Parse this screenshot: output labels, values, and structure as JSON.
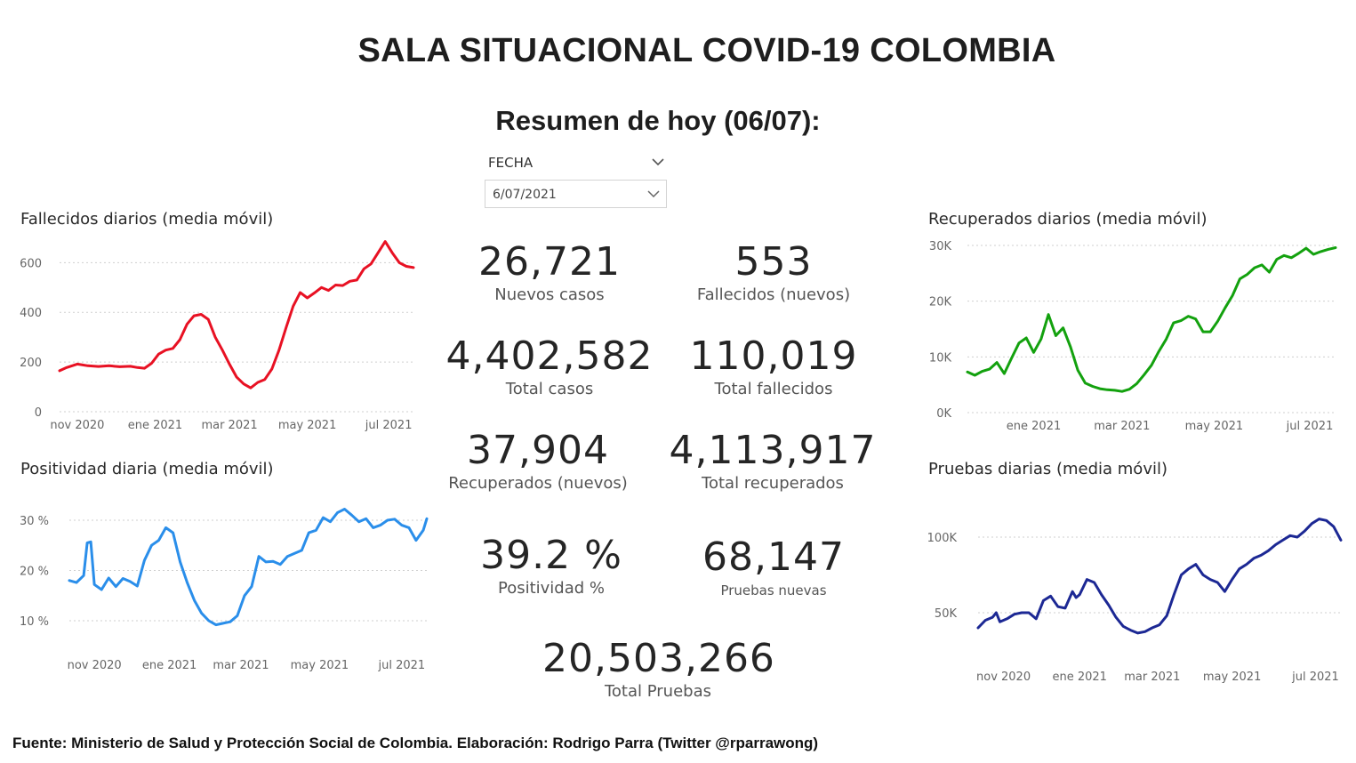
{
  "title": "SALA SITUACIONAL COVID-19 COLOMBIA",
  "subtitle": "Resumen de hoy (06/07):",
  "slicer": {
    "label": "FECHA",
    "value": "6/07/2021"
  },
  "kpis": {
    "nuevos_casos": {
      "value": "26,721",
      "label": "Nuevos casos"
    },
    "fallecidos_nuevos": {
      "value": "553",
      "label": "Fallecidos (nuevos)"
    },
    "total_casos": {
      "value": "4,402,582",
      "label": "Total casos"
    },
    "total_fallecidos": {
      "value": "110,019",
      "label": "Total fallecidos"
    },
    "recuperados_nuevos": {
      "value": "37,904",
      "label": "Recuperados (nuevos)"
    },
    "total_recuperados": {
      "value": "4,113,917",
      "label": "Total recuperados"
    },
    "positividad": {
      "value": "39.2 %",
      "label": "Positividad %"
    },
    "pruebas_nuevas": {
      "value": "68,147",
      "label": "Pruebas nuevas"
    },
    "total_pruebas": {
      "value": "20,503,266",
      "label": "Total Pruebas"
    }
  },
  "footer": "Fuente: Ministerio de Salud y Protección Social de Colombia. Elaboración: Rodrigo Parra (Twitter @rparrawong)",
  "chart_data": [
    {
      "id": "fallecidos",
      "type": "line",
      "title": "Fallecidos diarios (media móvil)",
      "color": "#e81123",
      "x_labels": [
        "nov 2020",
        "ene 2021",
        "mar 2021",
        "may 2021",
        "jul 2021"
      ],
      "x_label_pos": [
        0.05,
        0.27,
        0.48,
        0.7,
        0.93
      ],
      "y_ticks": [
        0,
        200,
        400,
        600
      ],
      "y_tick_labels": [
        "0",
        "200",
        "400",
        "600"
      ],
      "ylim": [
        0,
        680
      ],
      "grid": true,
      "x": [
        0,
        0.02,
        0.05,
        0.08,
        0.11,
        0.14,
        0.17,
        0.2,
        0.22,
        0.24,
        0.26,
        0.28,
        0.3,
        0.32,
        0.34,
        0.36,
        0.38,
        0.4,
        0.42,
        0.44,
        0.46,
        0.48,
        0.5,
        0.52,
        0.54,
        0.56,
        0.58,
        0.6,
        0.62,
        0.64,
        0.66,
        0.68,
        0.7,
        0.72,
        0.74,
        0.76,
        0.78,
        0.8,
        0.82,
        0.84,
        0.86,
        0.88,
        0.9,
        0.92,
        0.94,
        0.96,
        0.98,
        1.0
      ],
      "values": [
        165,
        178,
        192,
        185,
        182,
        185,
        181,
        183,
        178,
        175,
        195,
        232,
        248,
        255,
        290,
        352,
        386,
        392,
        372,
        300,
        248,
        192,
        140,
        112,
        96,
        118,
        130,
        172,
        248,
        338,
        425,
        480,
        458,
        478,
        500,
        488,
        510,
        508,
        525,
        530,
        575,
        595,
        640,
        685,
        640,
        600,
        585,
        580
      ]
    },
    {
      "id": "recuperados",
      "type": "line",
      "title": "Recuperados diarios (media móvil)",
      "color": "#13a10e",
      "x_labels": [
        "ene 2021",
        "mar 2021",
        "may 2021",
        "jul 2021"
      ],
      "x_label_pos": [
        0.18,
        0.42,
        0.67,
        0.93
      ],
      "y_ticks": [
        0,
        10000,
        20000,
        30000
      ],
      "y_tick_labels": [
        "0K",
        "10K",
        "20K",
        "30K"
      ],
      "ylim": [
        0,
        30000
      ],
      "grid": true,
      "x": [
        0,
        0.02,
        0.04,
        0.06,
        0.08,
        0.1,
        0.12,
        0.14,
        0.16,
        0.18,
        0.2,
        0.22,
        0.24,
        0.26,
        0.28,
        0.3,
        0.32,
        0.34,
        0.36,
        0.38,
        0.4,
        0.42,
        0.44,
        0.46,
        0.48,
        0.5,
        0.52,
        0.54,
        0.56,
        0.58,
        0.6,
        0.62,
        0.64,
        0.66,
        0.68,
        0.7,
        0.72,
        0.74,
        0.76,
        0.78,
        0.8,
        0.82,
        0.84,
        0.86,
        0.88,
        0.9,
        0.92,
        0.94,
        0.96,
        0.98,
        1.0
      ],
      "values": [
        7300,
        6700,
        7400,
        7800,
        9000,
        7000,
        9800,
        12500,
        13400,
        10800,
        13200,
        17600,
        13800,
        15200,
        11800,
        7600,
        5300,
        4700,
        4300,
        4100,
        4000,
        3800,
        4200,
        5200,
        6800,
        8500,
        11000,
        13200,
        16100,
        16500,
        17300,
        16800,
        14500,
        14500,
        16400,
        18800,
        21000,
        24000,
        24800,
        26000,
        26500,
        25200,
        27500,
        28200,
        27800,
        28600,
        29500,
        28400,
        28900,
        29300,
        29600
      ]
    },
    {
      "id": "positividad",
      "type": "line",
      "title": "Positividad diaria (media móvil)",
      "color": "#2a8eea",
      "x_labels": [
        "nov 2020",
        "ene 2021",
        "mar 2021",
        "may 2021",
        "jul 2021"
      ],
      "x_label_pos": [
        0.07,
        0.28,
        0.48,
        0.7,
        0.93
      ],
      "y_ticks": [
        10,
        20,
        30
      ],
      "y_tick_labels": [
        "10 %",
        "20 %",
        "30 %"
      ],
      "ylim": [
        7,
        33
      ],
      "grid": true,
      "x": [
        0,
        0.02,
        0.04,
        0.05,
        0.06,
        0.07,
        0.09,
        0.11,
        0.13,
        0.15,
        0.17,
        0.19,
        0.21,
        0.23,
        0.25,
        0.27,
        0.29,
        0.31,
        0.33,
        0.35,
        0.37,
        0.39,
        0.41,
        0.43,
        0.45,
        0.47,
        0.49,
        0.51,
        0.53,
        0.55,
        0.57,
        0.59,
        0.61,
        0.63,
        0.65,
        0.67,
        0.69,
        0.71,
        0.73,
        0.75,
        0.77,
        0.79,
        0.81,
        0.83,
        0.85,
        0.87,
        0.89,
        0.91,
        0.93,
        0.95,
        0.97,
        0.99,
        1.0
      ],
      "values": [
        18,
        17.6,
        19,
        25.5,
        25.7,
        17.2,
        16.2,
        18.5,
        16.8,
        18.4,
        17.8,
        16.9,
        22,
        25,
        26,
        28.5,
        27.5,
        21.7,
        17.5,
        14,
        11.5,
        10,
        9.2,
        9.5,
        9.8,
        11,
        15,
        16.8,
        22.8,
        21.7,
        21.8,
        21.2,
        22.8,
        23.4,
        24,
        27.5,
        28,
        30.5,
        29.7,
        31.5,
        32.2,
        31,
        29.7,
        30.3,
        28.5,
        29,
        30,
        30.2,
        29,
        28.5,
        26,
        28,
        30.3
      ]
    },
    {
      "id": "pruebas",
      "type": "line",
      "title": "Pruebas diarias (media móvil)",
      "color": "#1c2894",
      "x_labels": [
        "nov 2020",
        "ene 2021",
        "mar 2021",
        "may 2021",
        "jul 2021"
      ],
      "x_label_pos": [
        0.07,
        0.28,
        0.48,
        0.7,
        0.93
      ],
      "y_ticks": [
        50000,
        100000
      ],
      "y_tick_labels": [
        "50K",
        "100K"
      ],
      "ylim": [
        20000,
        120000
      ],
      "grid": true,
      "x": [
        0,
        0.02,
        0.04,
        0.05,
        0.06,
        0.08,
        0.1,
        0.12,
        0.14,
        0.16,
        0.18,
        0.2,
        0.22,
        0.24,
        0.26,
        0.27,
        0.28,
        0.3,
        0.32,
        0.34,
        0.36,
        0.38,
        0.4,
        0.42,
        0.44,
        0.46,
        0.48,
        0.5,
        0.52,
        0.54,
        0.56,
        0.58,
        0.6,
        0.62,
        0.64,
        0.66,
        0.68,
        0.7,
        0.72,
        0.74,
        0.76,
        0.78,
        0.8,
        0.82,
        0.84,
        0.86,
        0.88,
        0.9,
        0.92,
        0.94,
        0.96,
        0.98,
        1.0
      ],
      "values": [
        40000,
        45000,
        47000,
        50000,
        44000,
        46000,
        49000,
        50000,
        50000,
        46000,
        58000,
        61000,
        54000,
        53000,
        64000,
        60000,
        62000,
        72000,
        70000,
        62000,
        55000,
        47000,
        41000,
        38500,
        36500,
        37500,
        40000,
        42000,
        48000,
        62000,
        75000,
        79000,
        82000,
        75000,
        72000,
        70000,
        64000,
        72000,
        79000,
        82000,
        86000,
        88000,
        91000,
        95000,
        98000,
        101000,
        100000,
        104000,
        109000,
        112000,
        111000,
        107000,
        98000
      ]
    }
  ]
}
